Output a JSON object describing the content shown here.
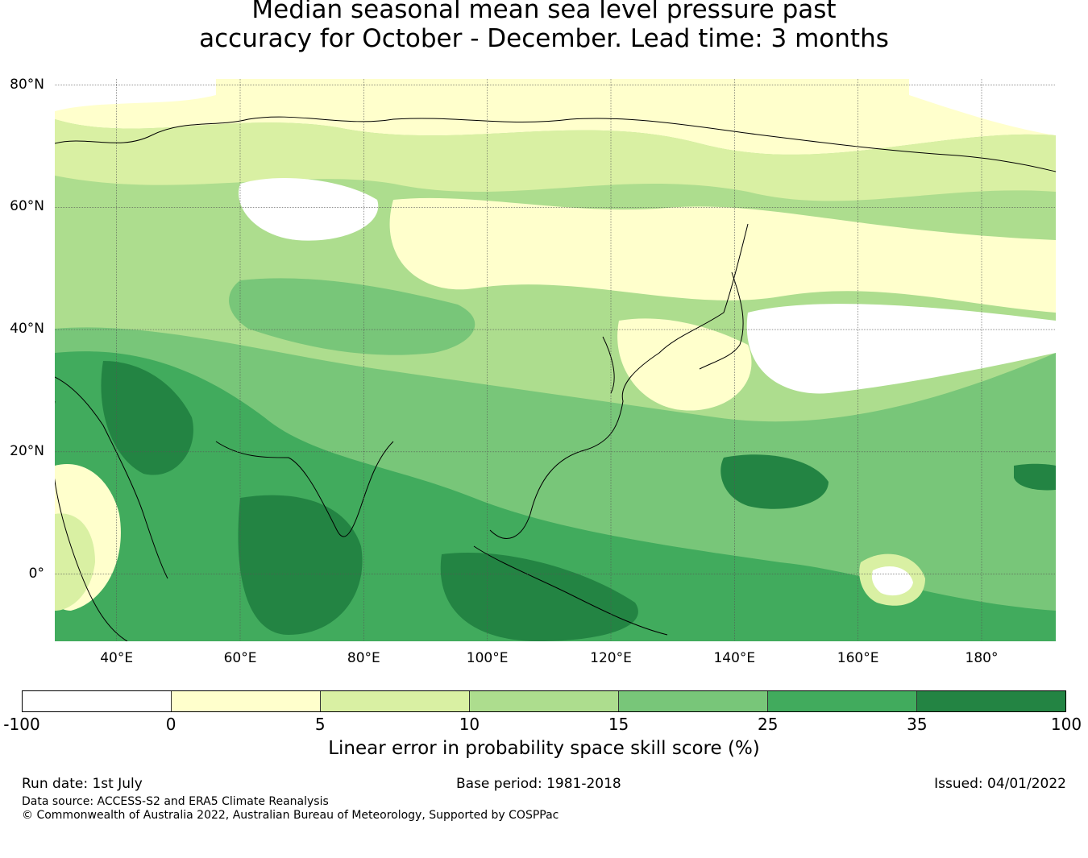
{
  "title": {
    "line1": "Median seasonal mean sea level pressure past",
    "line2": "accuracy for October - December. Lead time: 3 months"
  },
  "map": {
    "lat_labels": [
      "80°N",
      "60°N",
      "40°N",
      "20°N",
      "0°"
    ],
    "lon_labels": [
      "40°E",
      "60°E",
      "80°E",
      "100°E",
      "120°E",
      "140°E",
      "160°E",
      "180°"
    ],
    "lat_values": [
      80,
      60,
      40,
      20,
      0
    ],
    "lon_values": [
      40,
      60,
      80,
      100,
      120,
      140,
      160,
      180
    ],
    "extent": {
      "lon_min": 30,
      "lon_max": 192,
      "lat_min": -11,
      "lat_max": 81
    }
  },
  "colorbar": {
    "ticks": [
      "-100",
      "0",
      "5",
      "10",
      "15",
      "25",
      "35",
      "100"
    ],
    "colors": [
      "#ffffff",
      "#ffffcc",
      "#d9f0a3",
      "#addd8e",
      "#78c679",
      "#41ab5d",
      "#238443"
    ],
    "label": "Linear error in probability space skill score (%)"
  },
  "footer": {
    "run_date": "Run date: 1st July",
    "base_period": "Base period: 1981-2018",
    "issued": "Issued: 04/01/2022",
    "data_source": "Data source: ACCESS-S2 and ERA5 Climate Reanalysis",
    "copyright": "© Commonwealth of Australia 2022, Australian Bureau of Meteorology, Supported by COSPPac"
  }
}
